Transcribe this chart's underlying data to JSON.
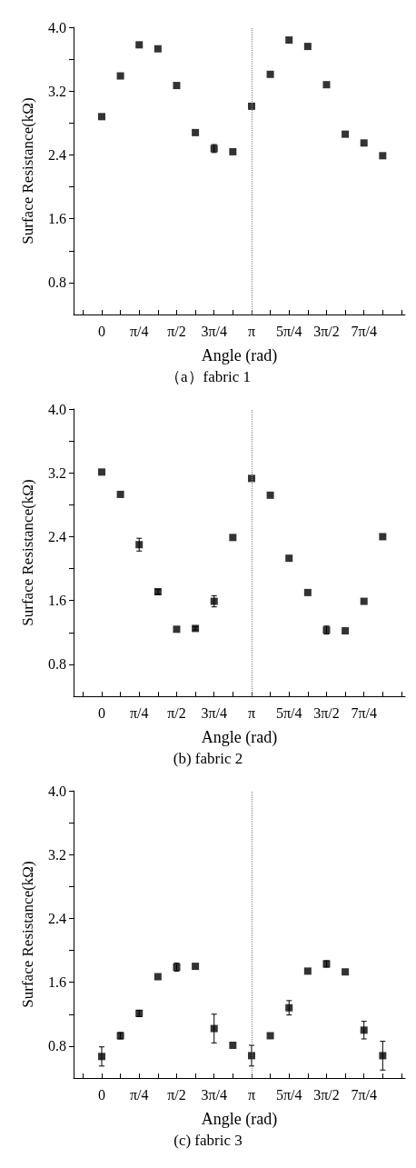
{
  "chart_data": [
    {
      "type": "scatter",
      "title": "（a）fabric 1",
      "xlabel": "Angle (rad)",
      "ylabel": "Surface Resistance(kΩ)",
      "marker": "square",
      "grid": false,
      "x": [
        0,
        0.3927,
        0.7854,
        1.1781,
        1.5708,
        1.9635,
        2.3562,
        2.7489,
        3.1416,
        3.5343,
        3.927,
        4.3197,
        4.7124,
        5.1051,
        5.4978,
        5.8905
      ],
      "series": [
        {
          "color": "#000000",
          "values": [
            2.88,
            3.39,
            3.78,
            3.73,
            3.27,
            2.68,
            2.48,
            2.44,
            3.01,
            3.41,
            3.84,
            3.76,
            3.28,
            2.66,
            2.55,
            2.39
          ],
          "errors": [
            null,
            null,
            null,
            null,
            null,
            null,
            0.05,
            null,
            null,
            null,
            null,
            null,
            null,
            null,
            null,
            null
          ]
        }
      ],
      "xlim": [
        -0.59,
        6.36
      ],
      "ylim": [
        0.4,
        4.0
      ],
      "xticks": [
        {
          "value": -0.3927,
          "label": null
        },
        {
          "value": 0,
          "label": "0"
        },
        {
          "value": 0.3927,
          "label": null
        },
        {
          "value": 0.7854,
          "label": "π/4"
        },
        {
          "value": 1.1781,
          "label": null
        },
        {
          "value": 1.5708,
          "label": "π/2"
        },
        {
          "value": 1.9635,
          "label": null
        },
        {
          "value": 2.3562,
          "label": "3π/4"
        },
        {
          "value": 2.7489,
          "label": null
        },
        {
          "value": 3.1416,
          "label": "π"
        },
        {
          "value": 3.5343,
          "label": null
        },
        {
          "value": 3.927,
          "label": "5π/4"
        },
        {
          "value": 4.3197,
          "label": null
        },
        {
          "value": 4.7124,
          "label": "3π/2"
        },
        {
          "value": 5.1051,
          "label": null
        },
        {
          "value": 5.4978,
          "label": "7π/4"
        },
        {
          "value": 5.8905,
          "label": null
        },
        {
          "value": 6.2832,
          "label": null
        }
      ],
      "yticks": [
        0.8,
        {
          "value": 1.2,
          "label": null
        },
        1.6,
        {
          "value": 2.0,
          "label": null
        },
        2.4,
        {
          "value": 2.8,
          "label": null
        },
        3.2,
        {
          "value": 3.6,
          "label": null
        },
        {
          "value": 4.0,
          "label": "4.0"
        }
      ],
      "ref_lines": [
        {
          "axis": "x",
          "value": 3.1416,
          "color": "#808080",
          "line_style": "dotted"
        }
      ]
    },
    {
      "type": "scatter",
      "title": "(b) fabric 2",
      "xlabel": "Angle (rad)",
      "ylabel": "Surface Resistance(kΩ)",
      "marker": "square",
      "grid": false,
      "x": [
        0,
        0.3927,
        0.7854,
        1.1781,
        1.5708,
        1.9635,
        2.3562,
        2.7489,
        3.1416,
        3.5343,
        3.927,
        4.3197,
        4.7124,
        5.1051,
        5.4978,
        5.8905
      ],
      "series": [
        {
          "color": "#000000",
          "values": [
            3.21,
            2.93,
            2.3,
            1.71,
            1.24,
            1.25,
            1.59,
            2.39,
            3.13,
            2.92,
            2.13,
            1.7,
            1.23,
            1.22,
            1.59,
            2.4
          ],
          "errors": [
            null,
            null,
            0.08,
            0.03,
            null,
            0.02,
            0.07,
            null,
            null,
            null,
            null,
            null,
            0.05,
            null,
            null,
            null
          ]
        }
      ],
      "xlim": [
        -0.59,
        6.36
      ],
      "ylim": [
        0.4,
        4.0
      ],
      "xticks": [
        {
          "value": -0.3927,
          "label": null
        },
        {
          "value": 0,
          "label": "0"
        },
        {
          "value": 0.3927,
          "label": null
        },
        {
          "value": 0.7854,
          "label": "π/4"
        },
        {
          "value": 1.1781,
          "label": null
        },
        {
          "value": 1.5708,
          "label": "π/2"
        },
        {
          "value": 1.9635,
          "label": null
        },
        {
          "value": 2.3562,
          "label": "3π/4"
        },
        {
          "value": 2.7489,
          "label": null
        },
        {
          "value": 3.1416,
          "label": "π"
        },
        {
          "value": 3.5343,
          "label": null
        },
        {
          "value": 3.927,
          "label": "5π/4"
        },
        {
          "value": 4.3197,
          "label": null
        },
        {
          "value": 4.7124,
          "label": "3π/2"
        },
        {
          "value": 5.1051,
          "label": null
        },
        {
          "value": 5.4978,
          "label": "7π/4"
        },
        {
          "value": 5.8905,
          "label": null
        },
        {
          "value": 6.2832,
          "label": null
        }
      ],
      "yticks": [
        0.8,
        {
          "value": 1.2,
          "label": null
        },
        1.6,
        {
          "value": 2.0,
          "label": null
        },
        2.4,
        {
          "value": 2.8,
          "label": null
        },
        3.2,
        {
          "value": 3.6,
          "label": null
        },
        {
          "value": 4.0,
          "label": "4.0"
        }
      ],
      "ref_lines": [
        {
          "axis": "x",
          "value": 3.1416,
          "color": "#808080",
          "line_style": "dotted"
        }
      ]
    },
    {
      "type": "scatter",
      "title": "(c) fabric 3",
      "xlabel": "Angle (rad)",
      "ylabel": "Surface Resistance(kΩ)",
      "marker": "square",
      "grid": false,
      "x": [
        0,
        0.3927,
        0.7854,
        1.1781,
        1.5708,
        1.9635,
        2.3562,
        2.7489,
        3.1416,
        3.5343,
        3.927,
        4.3197,
        4.7124,
        5.1051,
        5.4978,
        5.8905
      ],
      "series": [
        {
          "color": "#000000",
          "values": [
            0.67,
            0.93,
            1.21,
            1.67,
            1.79,
            1.8,
            1.02,
            0.81,
            0.68,
            0.93,
            1.28,
            1.74,
            1.83,
            1.73,
            1.0,
            0.68
          ],
          "errors": [
            0.12,
            0.04,
            0.04,
            null,
            0.05,
            null,
            0.18,
            null,
            0.13,
            null,
            0.09,
            null,
            0.04,
            null,
            0.11,
            0.18
          ]
        }
      ],
      "xlim": [
        -0.59,
        6.36
      ],
      "ylim": [
        0.4,
        4.0
      ],
      "xticks": [
        {
          "value": -0.3927,
          "label": null
        },
        {
          "value": 0,
          "label": "0"
        },
        {
          "value": 0.3927,
          "label": null
        },
        {
          "value": 0.7854,
          "label": "π/4"
        },
        {
          "value": 1.1781,
          "label": null
        },
        {
          "value": 1.5708,
          "label": "π/2"
        },
        {
          "value": 1.9635,
          "label": null
        },
        {
          "value": 2.3562,
          "label": "3π/4"
        },
        {
          "value": 2.7489,
          "label": null
        },
        {
          "value": 3.1416,
          "label": "π"
        },
        {
          "value": 3.5343,
          "label": null
        },
        {
          "value": 3.927,
          "label": "5π/4"
        },
        {
          "value": 4.3197,
          "label": null
        },
        {
          "value": 4.7124,
          "label": "3π/2"
        },
        {
          "value": 5.1051,
          "label": null
        },
        {
          "value": 5.4978,
          "label": "7π/4"
        },
        {
          "value": 5.8905,
          "label": null
        },
        {
          "value": 6.2832,
          "label": null
        }
      ],
      "yticks": [
        0.8,
        {
          "value": 1.2,
          "label": null
        },
        1.6,
        {
          "value": 2.0,
          "label": null
        },
        2.4,
        {
          "value": 2.8,
          "label": null
        },
        3.2,
        {
          "value": 3.6,
          "label": null
        },
        {
          "value": 4.0,
          "label": "4.0"
        }
      ],
      "ref_lines": [
        {
          "axis": "x",
          "value": 3.1416,
          "color": "#808080",
          "line_style": "dotted"
        }
      ]
    }
  ]
}
